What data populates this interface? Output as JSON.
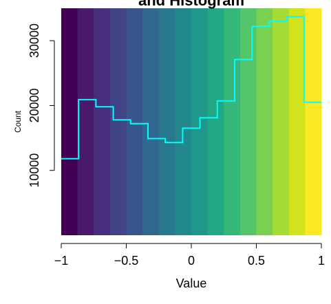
{
  "chart_data": {
    "type": "bar",
    "title": "and Histogram",
    "xlabel": "Value",
    "ylabel": "Count",
    "xlim": [
      -1,
      1
    ],
    "ylim": [
      0,
      35000
    ],
    "x_ticks": [
      {
        "value": -1,
        "label": "−1"
      },
      {
        "value": -0.5,
        "label": "−0.5"
      },
      {
        "value": 0,
        "label": "0"
      },
      {
        "value": 0.5,
        "label": "0.5"
      },
      {
        "value": 1,
        "label": "1"
      }
    ],
    "y_ticks": [
      {
        "value": 10000,
        "label": "10000"
      },
      {
        "value": 20000,
        "label": "20000"
      },
      {
        "value": 30000,
        "label": "30000"
      }
    ],
    "bins": {
      "edges": [
        -1,
        -0.8667,
        -0.7333,
        -0.6,
        -0.4667,
        -0.3333,
        -0.2,
        -0.0667,
        0.0667,
        0.2,
        0.3333,
        0.4667,
        0.6,
        0.7333,
        0.8667,
        1
      ],
      "counts": [
        11800,
        20900,
        19800,
        17800,
        17200,
        14900,
        14300,
        16500,
        18100,
        20700,
        27100,
        32200,
        33000,
        33700,
        20500
      ]
    },
    "background_colors": [
      "#440154",
      "#481A6C",
      "#472F7D",
      "#414487",
      "#39568C",
      "#31688E",
      "#2A788E",
      "#23888E",
      "#1F988B",
      "#22A884",
      "#35B779",
      "#54C568",
      "#7AD151",
      "#A5DB36",
      "#D2E21B",
      "#FDE725"
    ],
    "histogram_line_color": "#00FFFF",
    "grid": false
  }
}
